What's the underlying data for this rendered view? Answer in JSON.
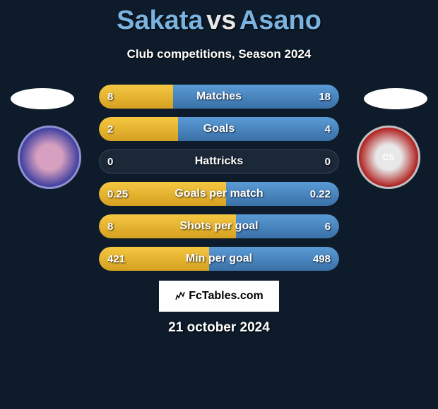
{
  "title": {
    "player1": "Sakata",
    "vs": "vs",
    "player2": "Asano"
  },
  "subtitle": "Club competitions, Season 2024",
  "colors": {
    "player1_fill": "linear-gradient(180deg, #f5c842 0%, #d4a020 100%)",
    "player2_fill": "linear-gradient(180deg, #5a9bd5 0%, #3a70a8 100%)",
    "background": "#0d1b2a",
    "bar_bg": "#1a2838"
  },
  "club_logos": {
    "left_label": "",
    "right_label": "CS"
  },
  "stats": [
    {
      "label": "Matches",
      "left_val": "8",
      "right_val": "18",
      "left_pct": 31,
      "right_pct": 69
    },
    {
      "label": "Goals",
      "left_val": "2",
      "right_val": "4",
      "left_pct": 33,
      "right_pct": 67
    },
    {
      "label": "Hattricks",
      "left_val": "0",
      "right_val": "0",
      "left_pct": 0,
      "right_pct": 0
    },
    {
      "label": "Goals per match",
      "left_val": "0.25",
      "right_val": "0.22",
      "left_pct": 53,
      "right_pct": 47
    },
    {
      "label": "Shots per goal",
      "left_val": "8",
      "right_val": "6",
      "left_pct": 57,
      "right_pct": 43
    },
    {
      "label": "Min per goal",
      "left_val": "421",
      "right_val": "498",
      "left_pct": 46,
      "right_pct": 54
    }
  ],
  "footer": {
    "brand": "FcTables.com",
    "date": "21 october 2024"
  }
}
